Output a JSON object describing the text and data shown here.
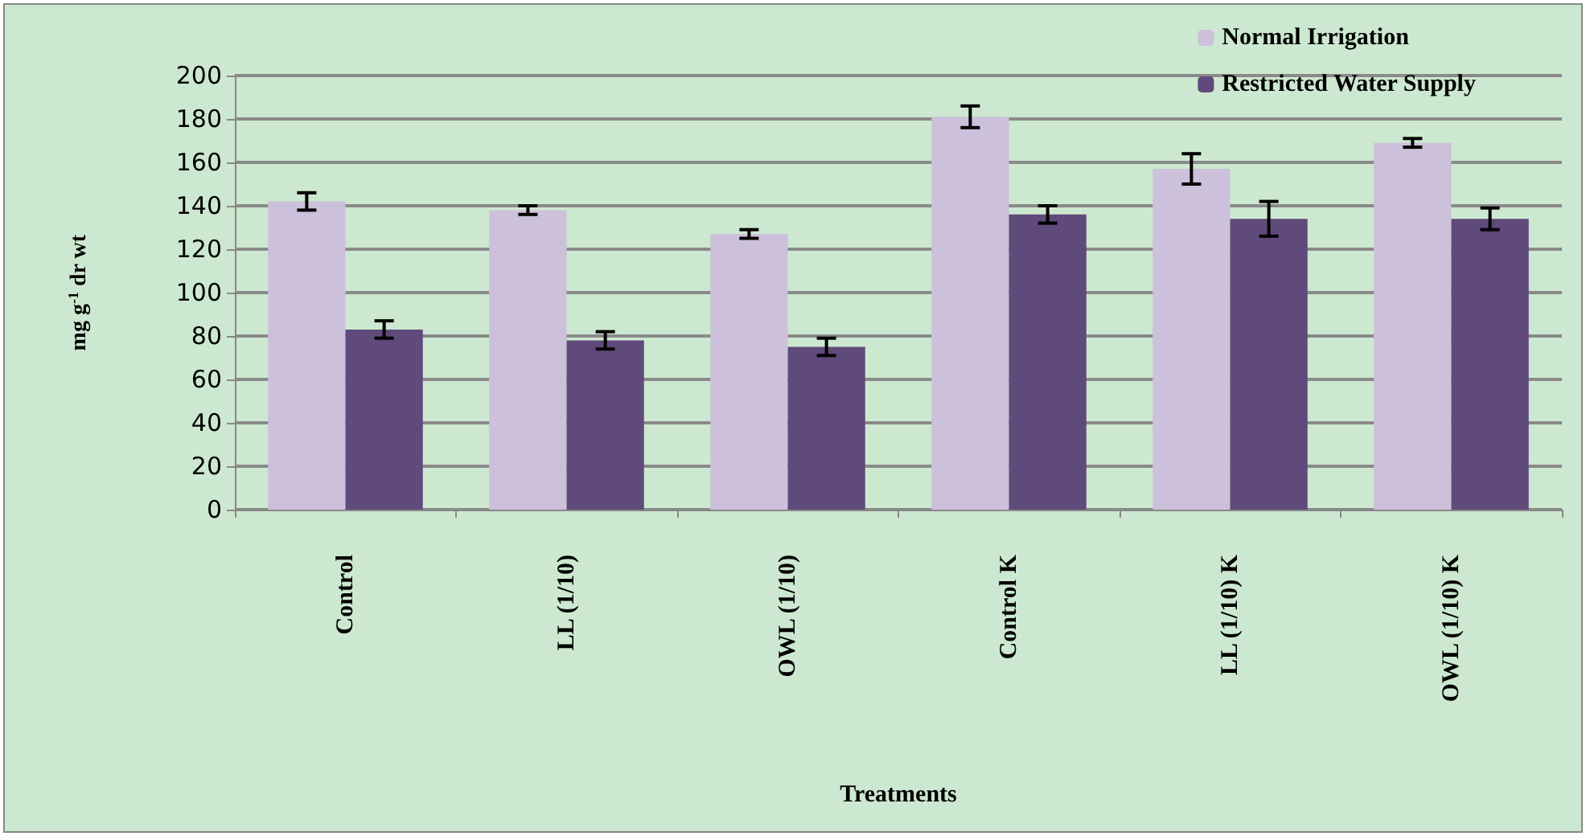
{
  "chart_data": {
    "type": "bar",
    "xlabel": "Treatments",
    "ylabel": "mg g$^{-1}$ dr wt",
    "categories": [
      "Control",
      "LL (1/10)",
      "OWL (1/10)",
      "Control K",
      "LL (1/10) K",
      "OWL (1/10) K"
    ],
    "series": [
      {
        "name": "Normal Irrigation",
        "color": "#ccc0da",
        "values": [
          142,
          138,
          127,
          181,
          157,
          169
        ],
        "errors": [
          4,
          2,
          2,
          5,
          7,
          2
        ]
      },
      {
        "name": "Restricted Water Supply",
        "color": "#604a7b",
        "values": [
          83,
          78,
          75,
          136,
          134,
          134
        ],
        "errors": [
          4,
          4,
          4,
          4,
          8,
          5
        ]
      }
    ],
    "ylim": [
      0,
      200
    ],
    "yticks": [
      0,
      20,
      40,
      60,
      80,
      100,
      120,
      140,
      160,
      180,
      200
    ],
    "grid": "y",
    "legend": "top right"
  }
}
